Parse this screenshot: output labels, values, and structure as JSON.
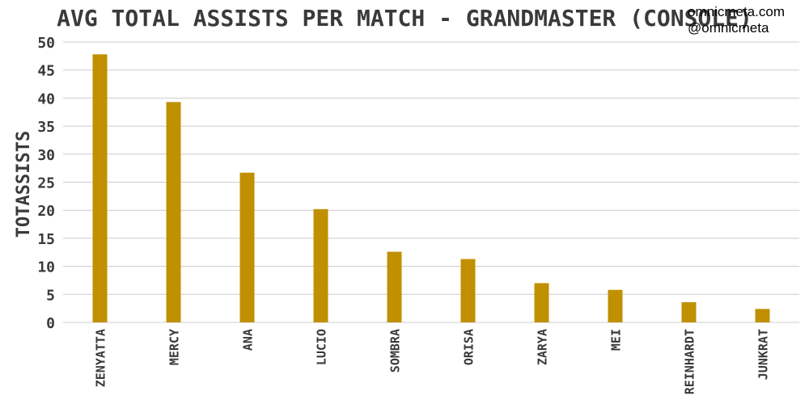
{
  "chart_data": {
    "type": "bar",
    "title": "AVG TOTAL ASSISTS PER MATCH - GRANDMASTER (CONSOLE)",
    "ylabel": "TOTASSISTS",
    "xlabel": "",
    "ylim": [
      0,
      50
    ],
    "yticks": [
      0,
      5,
      10,
      15,
      20,
      25,
      30,
      35,
      40,
      45,
      50
    ],
    "grid": true,
    "bar_color": "#c09000",
    "categories": [
      "ZENYATTA",
      "MERCY",
      "ANA",
      "LUCIO",
      "SOMBRA",
      "ORISA",
      "ZARYA",
      "MEI",
      "REINHARDT",
      "JUNKRAT"
    ],
    "values": [
      47.8,
      39.3,
      26.7,
      20.2,
      12.6,
      11.3,
      7.0,
      5.8,
      3.6,
      2.4
    ]
  },
  "branding": {
    "site": "omnicmeta.com",
    "handle": "@omnicmeta"
  }
}
